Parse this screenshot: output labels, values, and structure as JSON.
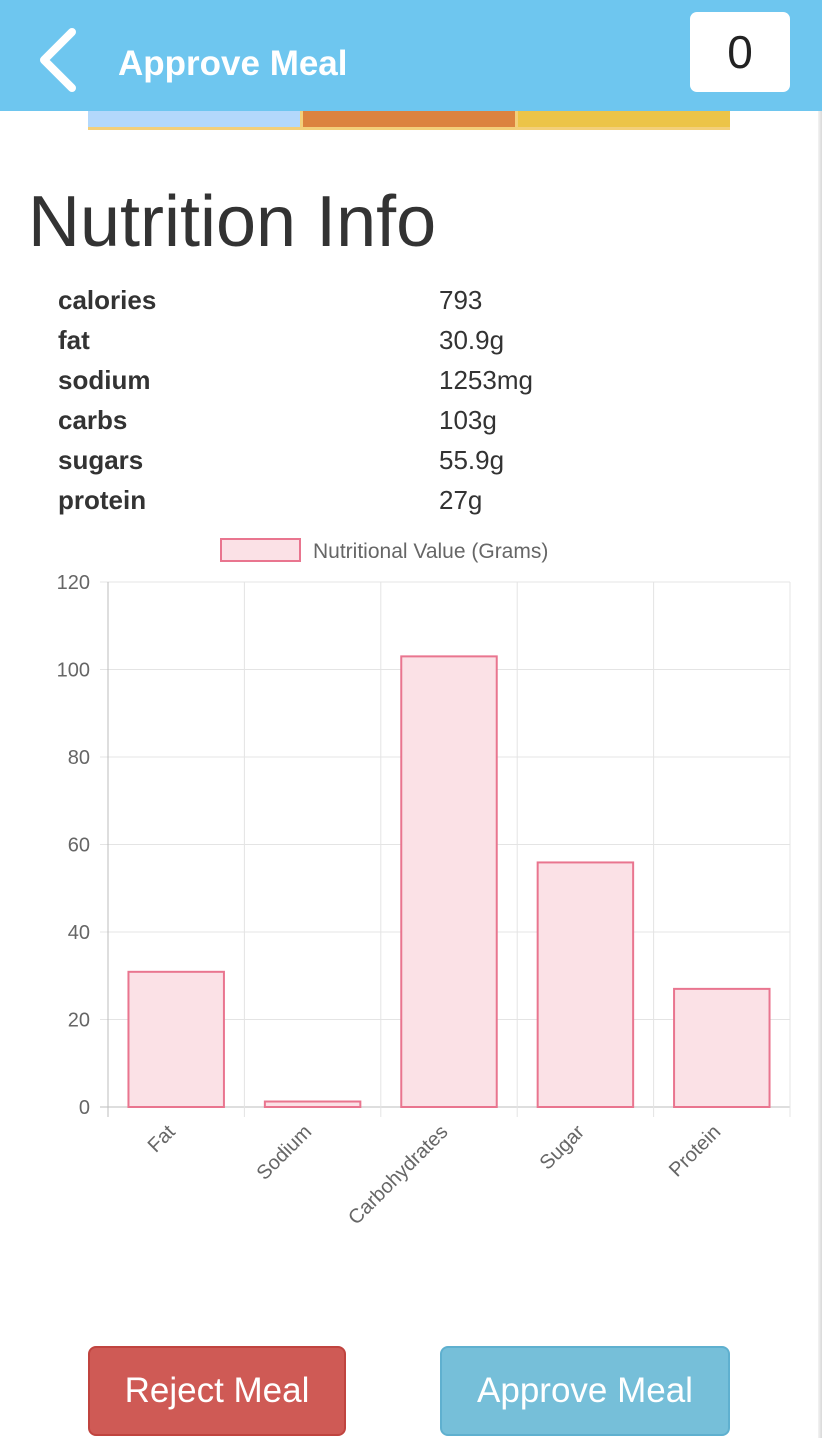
{
  "header": {
    "back_icon": "chevron-left-icon",
    "title": "Approve Meal",
    "count": "0",
    "color": "#6ec6ef"
  },
  "color_strip": [
    "#b3d8fb",
    "#dc833f",
    "#ecc448"
  ],
  "page_title": "Nutrition Info",
  "nutrition": [
    {
      "label": "calories",
      "value": "793"
    },
    {
      "label": "fat",
      "value": "30.9g"
    },
    {
      "label": "sodium",
      "value": "1253mg"
    },
    {
      "label": "carbs",
      "value": "103g"
    },
    {
      "label": "sugars",
      "value": "55.9g"
    },
    {
      "label": "protein",
      "value": "27g"
    }
  ],
  "chart_data": {
    "type": "bar",
    "categories": [
      "Fat",
      "Sodium",
      "Carbohydrates",
      "Sugar",
      "Protein"
    ],
    "series": [
      {
        "name": "Nutritional Value (Grams)",
        "values": [
          30.9,
          1.253,
          103,
          55.9,
          27
        ]
      }
    ],
    "ylim": [
      0,
      120
    ],
    "yticks": [
      "0",
      "20",
      "40",
      "60",
      "80",
      "100",
      "120"
    ],
    "grid": true,
    "legend": "top-center",
    "bar_fill": "#fbe1e6",
    "bar_stroke": "#e9758f"
  },
  "actions": {
    "reject_label": "Reject Meal",
    "approve_label": "Approve Meal"
  }
}
